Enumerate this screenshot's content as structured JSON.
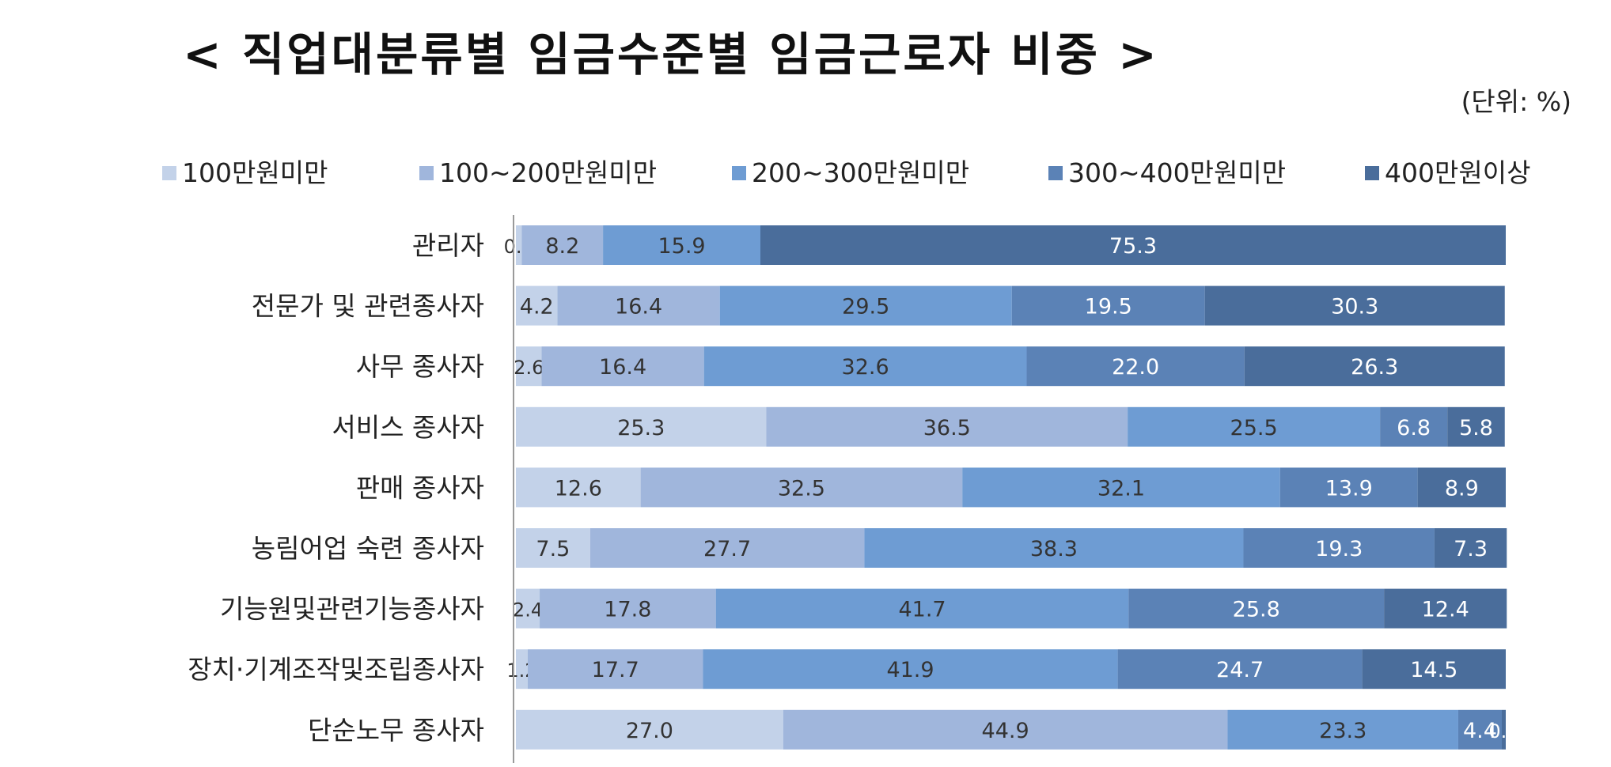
{
  "chart_data": {
    "type": "bar",
    "orientation": "horizontal",
    "stacked": true,
    "title": "< 직업대분류별 임금수준별 임금근로자 비중 >",
    "unit_label": "(단위: %)",
    "legend_position": "top",
    "categories": [
      "관리자",
      "전문가 및 관련종사자",
      "사무 종사자",
      "서비스 종사자",
      "판매 종사자",
      "농림어업 숙련 종사자",
      "기능원및관련기능종사자",
      "장치·기계조작및조립종사자",
      "단순노무 종사자"
    ],
    "series": [
      {
        "name": "100만원미만",
        "color": "#c3d2e9",
        "label_color": "#333333",
        "values": [
          0.6,
          4.2,
          2.6,
          25.3,
          12.6,
          7.5,
          2.4,
          1.2,
          27.0
        ],
        "labels": [
          "0.6",
          "4.2",
          "2.6",
          "25.3",
          "12.6",
          "7.5",
          "2.4",
          "1.2",
          "27.0"
        ]
      },
      {
        "name": "100~200만원미만",
        "color": "#a0b6dc",
        "label_color": "#333333",
        "values": [
          8.2,
          16.4,
          16.4,
          36.5,
          32.5,
          27.7,
          17.8,
          17.7,
          44.9
        ],
        "labels": [
          "8.2",
          "16.4",
          "16.4",
          "36.5",
          "32.5",
          "27.7",
          "17.8",
          "17.7",
          "44.9"
        ]
      },
      {
        "name": "200~300만원미만",
        "color": "#6e9cd3",
        "label_color": "#333333",
        "values": [
          15.9,
          29.5,
          32.6,
          25.5,
          32.1,
          38.3,
          41.7,
          41.9,
          23.3
        ],
        "labels": [
          "15.9",
          "29.5",
          "32.6",
          "25.5",
          "32.1",
          "38.3",
          "41.7",
          "41.9",
          "23.3"
        ]
      },
      {
        "name": "300~400만원미만",
        "color": "#5b82b6",
        "label_color": "#ffffff",
        "values": [
          0.0,
          19.5,
          22.0,
          6.8,
          13.9,
          19.3,
          25.8,
          24.7,
          4.4
        ],
        "labels": [
          "",
          "19.5",
          "22.0",
          "6.8",
          "13.9",
          "19.3",
          "25.8",
          "24.7",
          "4.4"
        ]
      },
      {
        "name": "400만원이상",
        "color": "#4a6d9b",
        "label_color": "#ffffff",
        "values": [
          75.3,
          30.3,
          26.3,
          5.8,
          8.9,
          7.3,
          12.4,
          14.5,
          0.4
        ],
        "labels": [
          "75.3",
          "30.3",
          "26.3",
          "5.8",
          "8.9",
          "7.3",
          "12.4",
          "14.5",
          "0.4"
        ]
      }
    ],
    "xlim": [
      0,
      100
    ],
    "grid": false
  }
}
